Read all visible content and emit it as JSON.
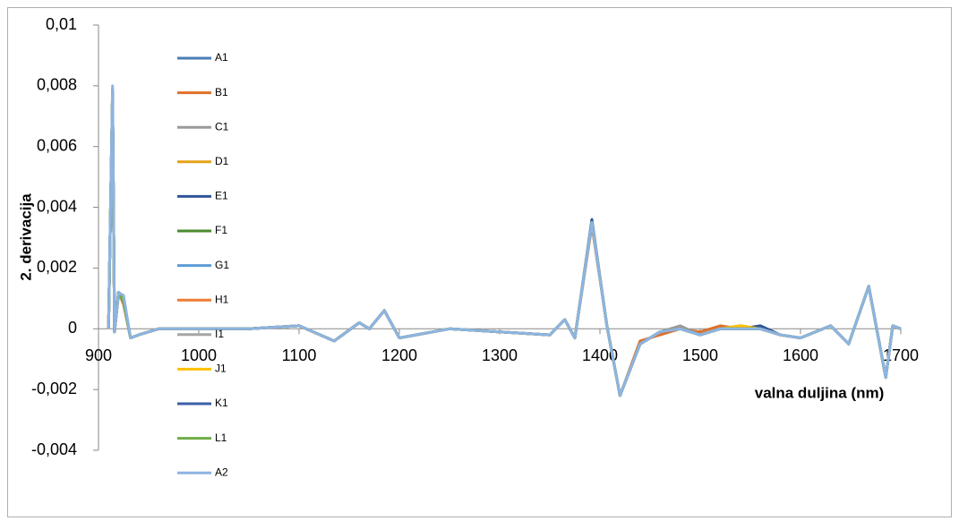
{
  "chart_data": {
    "type": "line",
    "x_label": "valna duljina (nm)",
    "y_label": "2. derivacija",
    "x": [
      910,
      914,
      916,
      920,
      925,
      932,
      940,
      960,
      1000,
      1050,
      1100,
      1135,
      1160,
      1170,
      1185,
      1200,
      1250,
      1300,
      1350,
      1365,
      1375,
      1392,
      1407,
      1420,
      1440,
      1460,
      1480,
      1500,
      1520,
      1540,
      1560,
      1580,
      1600,
      1630,
      1648,
      1668,
      1685,
      1692,
      1700
    ],
    "xlim": [
      900,
      1700
    ],
    "xticks": [
      900,
      1000,
      1100,
      1200,
      1300,
      1400,
      1500,
      1600,
      1700
    ],
    "ylim": [
      -0.004,
      0.01
    ],
    "yticks": [
      {
        "value": -0.004,
        "label": "-0,004"
      },
      {
        "value": -0.002,
        "label": "-0,002"
      },
      0,
      {
        "value": 0.002,
        "label": "0,002"
      },
      {
        "value": 0.004,
        "label": "0,004"
      },
      {
        "value": 0.006,
        "label": "0,006"
      },
      {
        "value": 0.008,
        "label": "0,008"
      },
      {
        "value": 0.01,
        "label": "0,01"
      }
    ],
    "series": [
      {
        "name": "A1",
        "color": "#4a7eb5",
        "values": [
          0,
          0.0078,
          -0.0001,
          0.0012,
          0.0009,
          -0.0003,
          -0.0002,
          0,
          0,
          0,
          0.0001,
          -0.0004,
          0.0002,
          0,
          0.0006,
          -0.0003,
          0,
          -0.0001,
          -0.0002,
          0.0003,
          -0.0003,
          0.0035,
          0.0001,
          -0.0022,
          -0.0005,
          -0.0001,
          0,
          -0.0002,
          0,
          0,
          0,
          -0.0002,
          -0.0003,
          0.0001,
          -0.0005,
          0.0014,
          -0.0016,
          0.0001,
          0
        ]
      },
      {
        "name": "B1",
        "color": "#e0702a",
        "values": [
          0,
          0.0077,
          -0.0001,
          0.0012,
          0.0008,
          -0.0003,
          -0.0002,
          0,
          0,
          0,
          0.0001,
          -0.0004,
          0.0002,
          0,
          0.0006,
          -0.0003,
          0,
          -0.0001,
          -0.0002,
          0.0003,
          -0.0003,
          0.0034,
          0.0001,
          -0.0022,
          -0.0004,
          -0.0002,
          0,
          -0.0001,
          0.0001,
          0,
          0,
          -0.0002,
          -0.0003,
          0.0001,
          -0.0005,
          0.0014,
          -0.0016,
          0.0001,
          0
        ]
      },
      {
        "name": "C1",
        "color": "#9a9a9a",
        "values": [
          0,
          0.0079,
          -0.0001,
          0.0012,
          0.0009,
          -0.0003,
          -0.0002,
          0,
          0,
          0,
          0.0001,
          -0.0004,
          0.0002,
          0,
          0.0006,
          -0.0003,
          0,
          -0.0001,
          -0.0002,
          0.0003,
          -0.0003,
          0.0035,
          0.0001,
          -0.0022,
          -0.0005,
          -0.0001,
          0.0001,
          -0.0002,
          0,
          0.0001,
          0,
          -0.0002,
          -0.0003,
          0.0001,
          -0.0005,
          0.0014,
          -0.0016,
          0.0001,
          0
        ]
      },
      {
        "name": "D1",
        "color": "#e3a21a",
        "values": [
          0,
          0.0078,
          -0.0001,
          0.0011,
          0.0009,
          -0.0003,
          -0.0002,
          0,
          0,
          0,
          0.0001,
          -0.0004,
          0.0002,
          0,
          0.0006,
          -0.0003,
          0,
          -0.0001,
          -0.0002,
          0.0003,
          -0.0003,
          0.0035,
          0.0001,
          -0.0022,
          -0.0005,
          -0.0001,
          0,
          -0.0002,
          0,
          0.0001,
          0,
          -0.0002,
          -0.0003,
          0.0001,
          -0.0005,
          0.0014,
          -0.0016,
          0.0001,
          0
        ]
      },
      {
        "name": "E1",
        "color": "#2f5597",
        "values": [
          0,
          0.0078,
          -0.0001,
          0.0012,
          0.0009,
          -0.0003,
          -0.0002,
          0,
          0,
          0,
          0.0001,
          -0.0004,
          0.0002,
          0,
          0.0006,
          -0.0003,
          0,
          -0.0001,
          -0.0002,
          0.0003,
          -0.0003,
          0.0036,
          0.0001,
          -0.0022,
          -0.0005,
          -0.0001,
          0,
          -0.0002,
          0,
          0,
          0.0001,
          -0.0002,
          -0.0003,
          0.0001,
          -0.0005,
          0.0014,
          -0.0016,
          0.0001,
          0
        ]
      },
      {
        "name": "F1",
        "color": "#4a8a2c",
        "values": [
          0,
          0.0078,
          -0.0001,
          0.0012,
          0.0009,
          -0.0003,
          -0.0002,
          0,
          0,
          0,
          0.0001,
          -0.0004,
          0.0002,
          0,
          0.0006,
          -0.0003,
          0,
          -0.0001,
          -0.0002,
          0.0003,
          -0.0003,
          0.0035,
          0.0001,
          -0.0022,
          -0.0005,
          -0.0001,
          0,
          -0.0002,
          0,
          0,
          0,
          -0.0002,
          -0.0003,
          0.0001,
          -0.0005,
          0.0014,
          -0.0016,
          0.0001,
          0
        ]
      },
      {
        "name": "G1",
        "color": "#5b9bd5",
        "values": [
          0,
          0.0078,
          -0.0001,
          0.0012,
          0.0009,
          -0.0003,
          -0.0002,
          0,
          0,
          0,
          0.0001,
          -0.0004,
          0.0002,
          0,
          0.0006,
          -0.0003,
          0,
          -0.0001,
          -0.0002,
          0.0003,
          -0.0003,
          0.0035,
          0.0001,
          -0.0022,
          -0.0005,
          -0.0001,
          0,
          -0.0002,
          0,
          0,
          0,
          -0.0002,
          -0.0003,
          0.0001,
          -0.0005,
          0.0014,
          -0.0016,
          0.0001,
          0
        ]
      },
      {
        "name": "H1",
        "color": "#ed7d31",
        "values": [
          0,
          0.0078,
          -0.0001,
          0.0012,
          0.0009,
          -0.0003,
          -0.0002,
          0,
          0,
          0,
          0.0001,
          -0.0004,
          0.0002,
          0,
          0.0006,
          -0.0003,
          0,
          -0.0001,
          -0.0002,
          0.0003,
          -0.0003,
          0.0035,
          0.0001,
          -0.0022,
          -0.0005,
          -0.0001,
          0,
          -0.0002,
          0,
          0,
          0,
          -0.0002,
          -0.0003,
          0.0001,
          -0.0005,
          0.0014,
          -0.0016,
          0.0001,
          0
        ]
      },
      {
        "name": "I1",
        "color": "#a5a5a5",
        "values": [
          0,
          0.0078,
          -0.0001,
          0.0012,
          0.0009,
          -0.0003,
          -0.0002,
          0,
          0,
          0,
          0.0001,
          -0.0004,
          0.0002,
          0,
          0.0006,
          -0.0003,
          0,
          -0.0001,
          -0.0002,
          0.0003,
          -0.0003,
          0.0035,
          0.0001,
          -0.0022,
          -0.0005,
          -0.0001,
          0,
          -0.0002,
          0,
          0,
          0,
          -0.0002,
          -0.0003,
          0.0001,
          -0.0005,
          0.0014,
          -0.0016,
          0.0001,
          0
        ]
      },
      {
        "name": "J1",
        "color": "#ffc000",
        "values": [
          0,
          0.0078,
          -0.0001,
          0.0012,
          0.0009,
          -0.0003,
          -0.0002,
          0,
          0,
          0,
          0.0001,
          -0.0004,
          0.0002,
          0,
          0.0006,
          -0.0003,
          0,
          -0.0001,
          -0.0002,
          0.0003,
          -0.0003,
          0.0035,
          0.0001,
          -0.0022,
          -0.0005,
          -0.0001,
          0,
          -0.0002,
          0,
          0.0001,
          0,
          -0.0002,
          -0.0003,
          0.0001,
          -0.0005,
          0.0014,
          -0.0016,
          0.0001,
          0
        ]
      },
      {
        "name": "K1",
        "color": "#3a5fa8",
        "values": [
          0,
          0.0078,
          -0.0001,
          0.0012,
          0.0009,
          -0.0003,
          -0.0002,
          0,
          0,
          0,
          0.0001,
          -0.0004,
          0.0002,
          0,
          0.0006,
          -0.0003,
          0,
          -0.0001,
          -0.0002,
          0.0003,
          -0.0003,
          0.0035,
          0.0001,
          -0.0022,
          -0.0005,
          -0.0001,
          0,
          -0.0002,
          0,
          0,
          0,
          -0.0002,
          -0.0003,
          0.0001,
          -0.0005,
          0.0014,
          -0.0016,
          0.0001,
          0
        ]
      },
      {
        "name": "L1",
        "color": "#70ad47",
        "values": [
          0,
          0.0078,
          -0.0001,
          0.0012,
          0.0009,
          -0.0003,
          -0.0002,
          0,
          0,
          0,
          0.0001,
          -0.0004,
          0.0002,
          0,
          0.0006,
          -0.0003,
          0,
          -0.0001,
          -0.0002,
          0.0003,
          -0.0003,
          0.0035,
          0.0001,
          -0.0022,
          -0.0005,
          -0.0001,
          0,
          -0.0002,
          0,
          0,
          0,
          -0.0002,
          -0.0003,
          0.0001,
          -0.0005,
          0.0014,
          -0.0016,
          0.0001,
          0
        ]
      },
      {
        "name": "A2",
        "color": "#8db4e2",
        "values": [
          0,
          0.008,
          -0.0001,
          0.0012,
          0.0011,
          -0.0003,
          -0.0002,
          0,
          0,
          0,
          0.0001,
          -0.0004,
          0.0002,
          0,
          0.0006,
          -0.0003,
          0,
          -0.0001,
          -0.0002,
          0.0003,
          -0.0003,
          0.0035,
          0.0001,
          -0.0022,
          -0.0005,
          -0.0001,
          0,
          -0.0002,
          0,
          0,
          0,
          -0.0002,
          -0.0003,
          0.0001,
          -0.0005,
          0.0014,
          -0.0016,
          0.0001,
          0
        ]
      }
    ]
  }
}
